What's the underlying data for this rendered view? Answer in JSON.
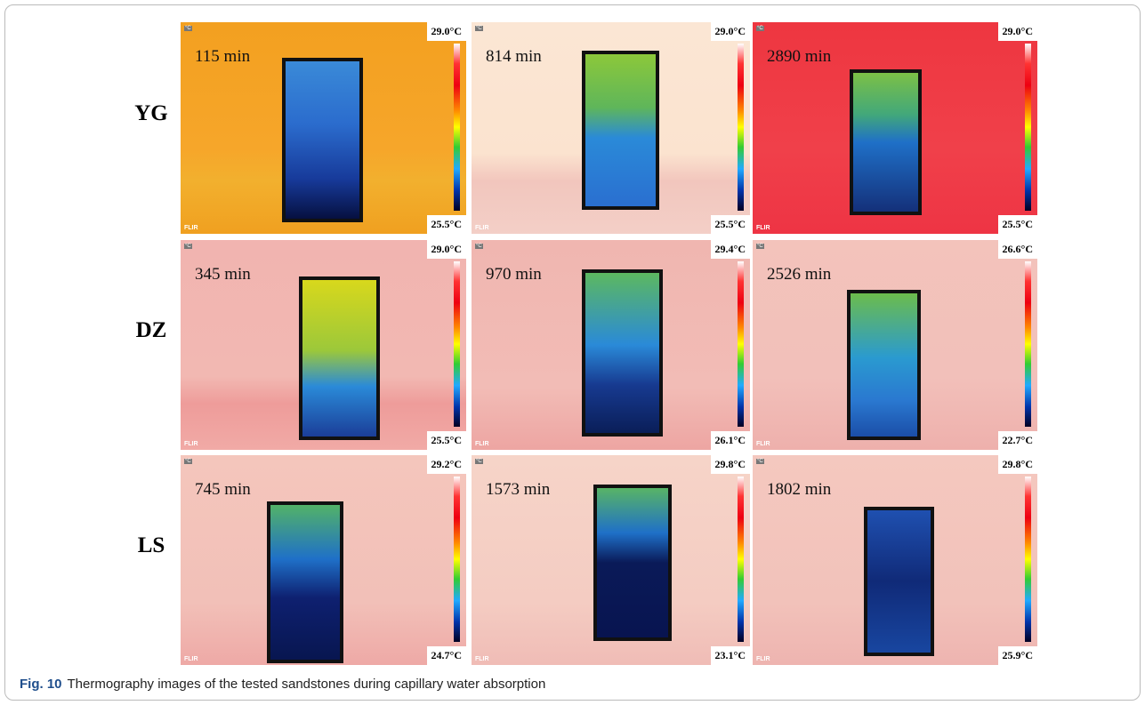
{
  "rows": [
    {
      "label": "YG",
      "panels": [
        {
          "time": "115 min",
          "max": "29.0°C",
          "min": "25.5°C"
        },
        {
          "time": "814 min",
          "max": "29.0°C",
          "min": "25.5°C"
        },
        {
          "time": "2890 min",
          "max": "29.0°C",
          "min": "25.5°C"
        }
      ]
    },
    {
      "label": "DZ",
      "panels": [
        {
          "time": "345 min",
          "max": "29.0°C",
          "min": "25.5°C"
        },
        {
          "time": "970 min",
          "max": "29.4°C",
          "min": "26.1°C"
        },
        {
          "time": "2526 min",
          "max": "26.6°C",
          "min": "22.7°C"
        }
      ]
    },
    {
      "label": "LS",
      "panels": [
        {
          "time": "745 min",
          "max": "29.2°C",
          "min": "24.7°C"
        },
        {
          "time": "1573 min",
          "max": "29.8°C",
          "min": "23.1°C"
        },
        {
          "time": "1802 min",
          "max": "29.8°C",
          "min": "25.9°C"
        }
      ]
    }
  ],
  "logo": "FLIR",
  "unit_icon": "°C",
  "caption": {
    "label": "Fig. 10",
    "text": "Thermography images of the tested sandstones during capillary water absorption"
  }
}
